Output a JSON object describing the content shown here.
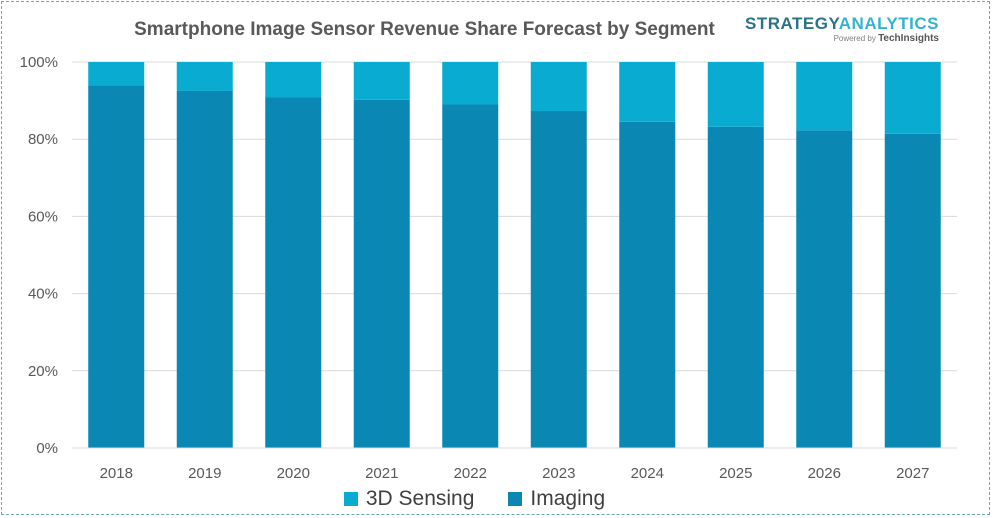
{
  "brand": {
    "name_part1": "STRATEGY",
    "name_part2": "ANALYTICS",
    "powered_prefix": "Powered by",
    "powered_by": "TechInsights"
  },
  "colors": {
    "imaging": "#0a88b3",
    "sensing": "#0aabd1",
    "grid": "#d9d9d9",
    "axis_text": "#595959"
  },
  "chart_data": {
    "type": "bar",
    "stacked": true,
    "title": "Smartphone Image Sensor Revenue Share Forecast by Segment",
    "categories": [
      "2018",
      "2019",
      "2020",
      "2021",
      "2022",
      "2023",
      "2024",
      "2025",
      "2026",
      "2027"
    ],
    "series": [
      {
        "name": "Imaging",
        "values": [
          94,
          92.5,
          90.8,
          90.2,
          89,
          87.3,
          84.5,
          83.2,
          82.3,
          81.4
        ]
      },
      {
        "name": "3D Sensing",
        "values": [
          6,
          7.5,
          9.2,
          9.8,
          11,
          12.7,
          15.5,
          16.8,
          17.7,
          18.6
        ]
      }
    ],
    "ylim": [
      0,
      100
    ],
    "yticks": [
      "0%",
      "20%",
      "40%",
      "60%",
      "80%",
      "100%"
    ],
    "grid": true,
    "legend_position": "bottom"
  }
}
